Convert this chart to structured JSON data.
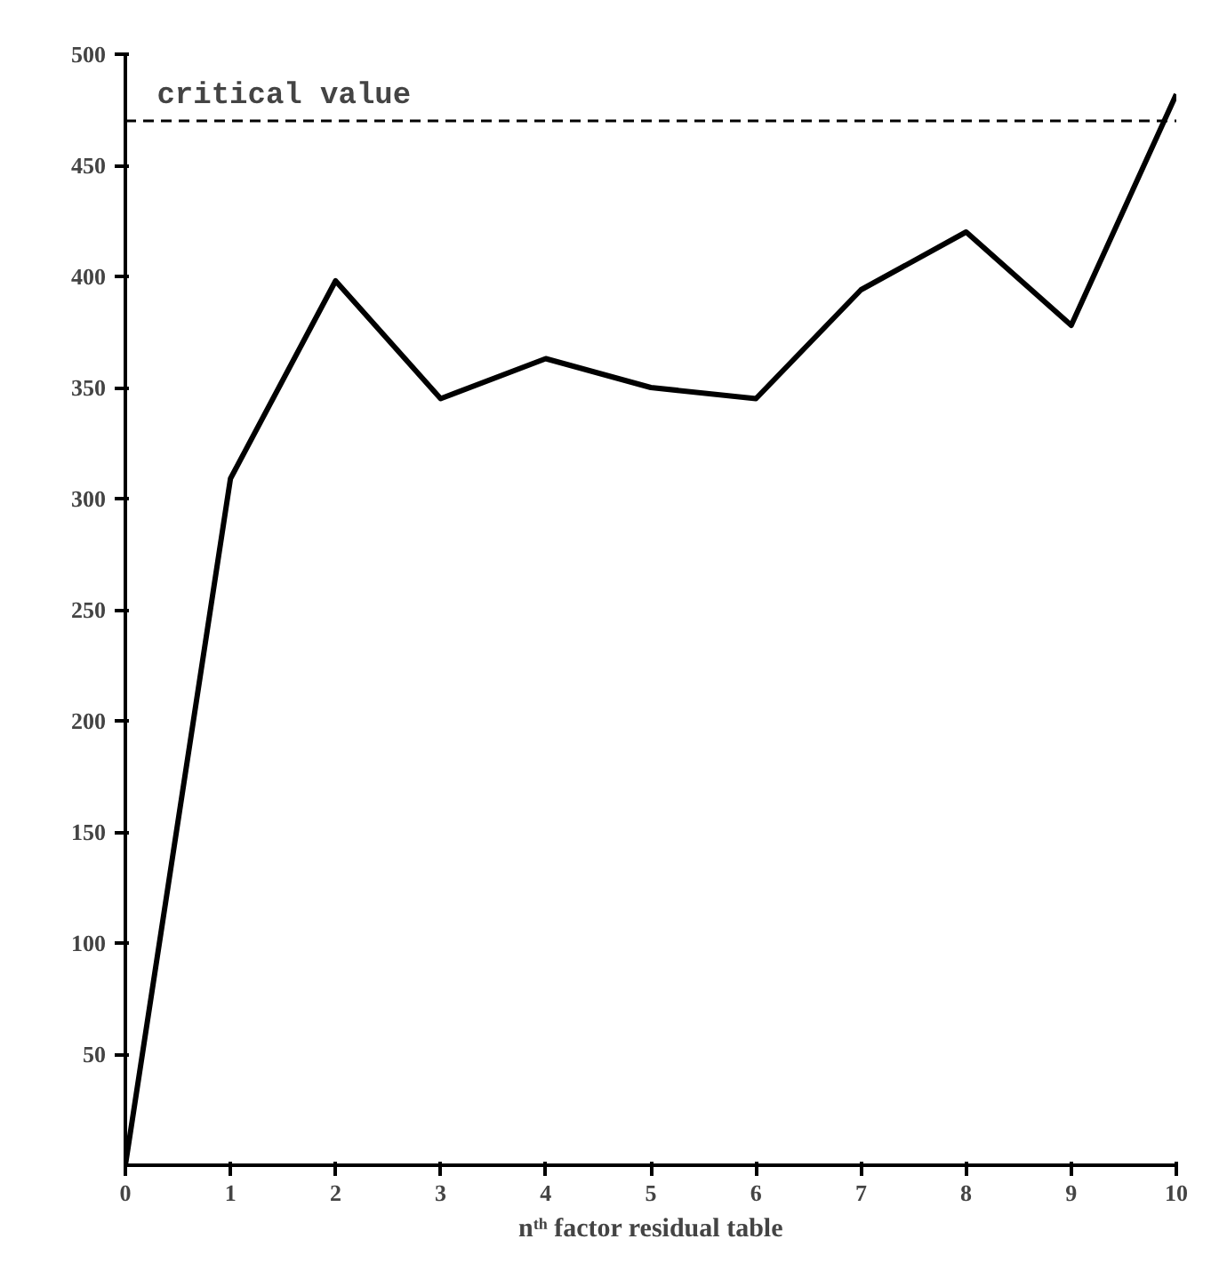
{
  "chart_data": {
    "type": "line",
    "xlabel": "nᵗʰ factor residual table",
    "x": [
      0,
      1,
      2,
      3,
      4,
      5,
      6,
      7,
      8,
      9,
      10
    ],
    "series": [
      {
        "color": "#000000",
        "values": [
          0,
          309,
          398,
          345,
          363,
          350,
          345,
          394,
          420,
          378,
          482
        ]
      }
    ],
    "xlim": [
      0,
      10
    ],
    "ylim": [
      0,
      500
    ],
    "xticks": [
      0,
      1,
      2,
      3,
      4,
      5,
      6,
      7,
      8,
      9,
      10
    ],
    "yticks": [
      50,
      100,
      150,
      200,
      250,
      300,
      350,
      400,
      450,
      500
    ],
    "ref_lines": [
      {
        "axis": "y",
        "value": 470,
        "label": "critical value",
        "line_style": "dashed",
        "color": "#000000"
      }
    ],
    "marker": "none",
    "line_style": "solid"
  }
}
